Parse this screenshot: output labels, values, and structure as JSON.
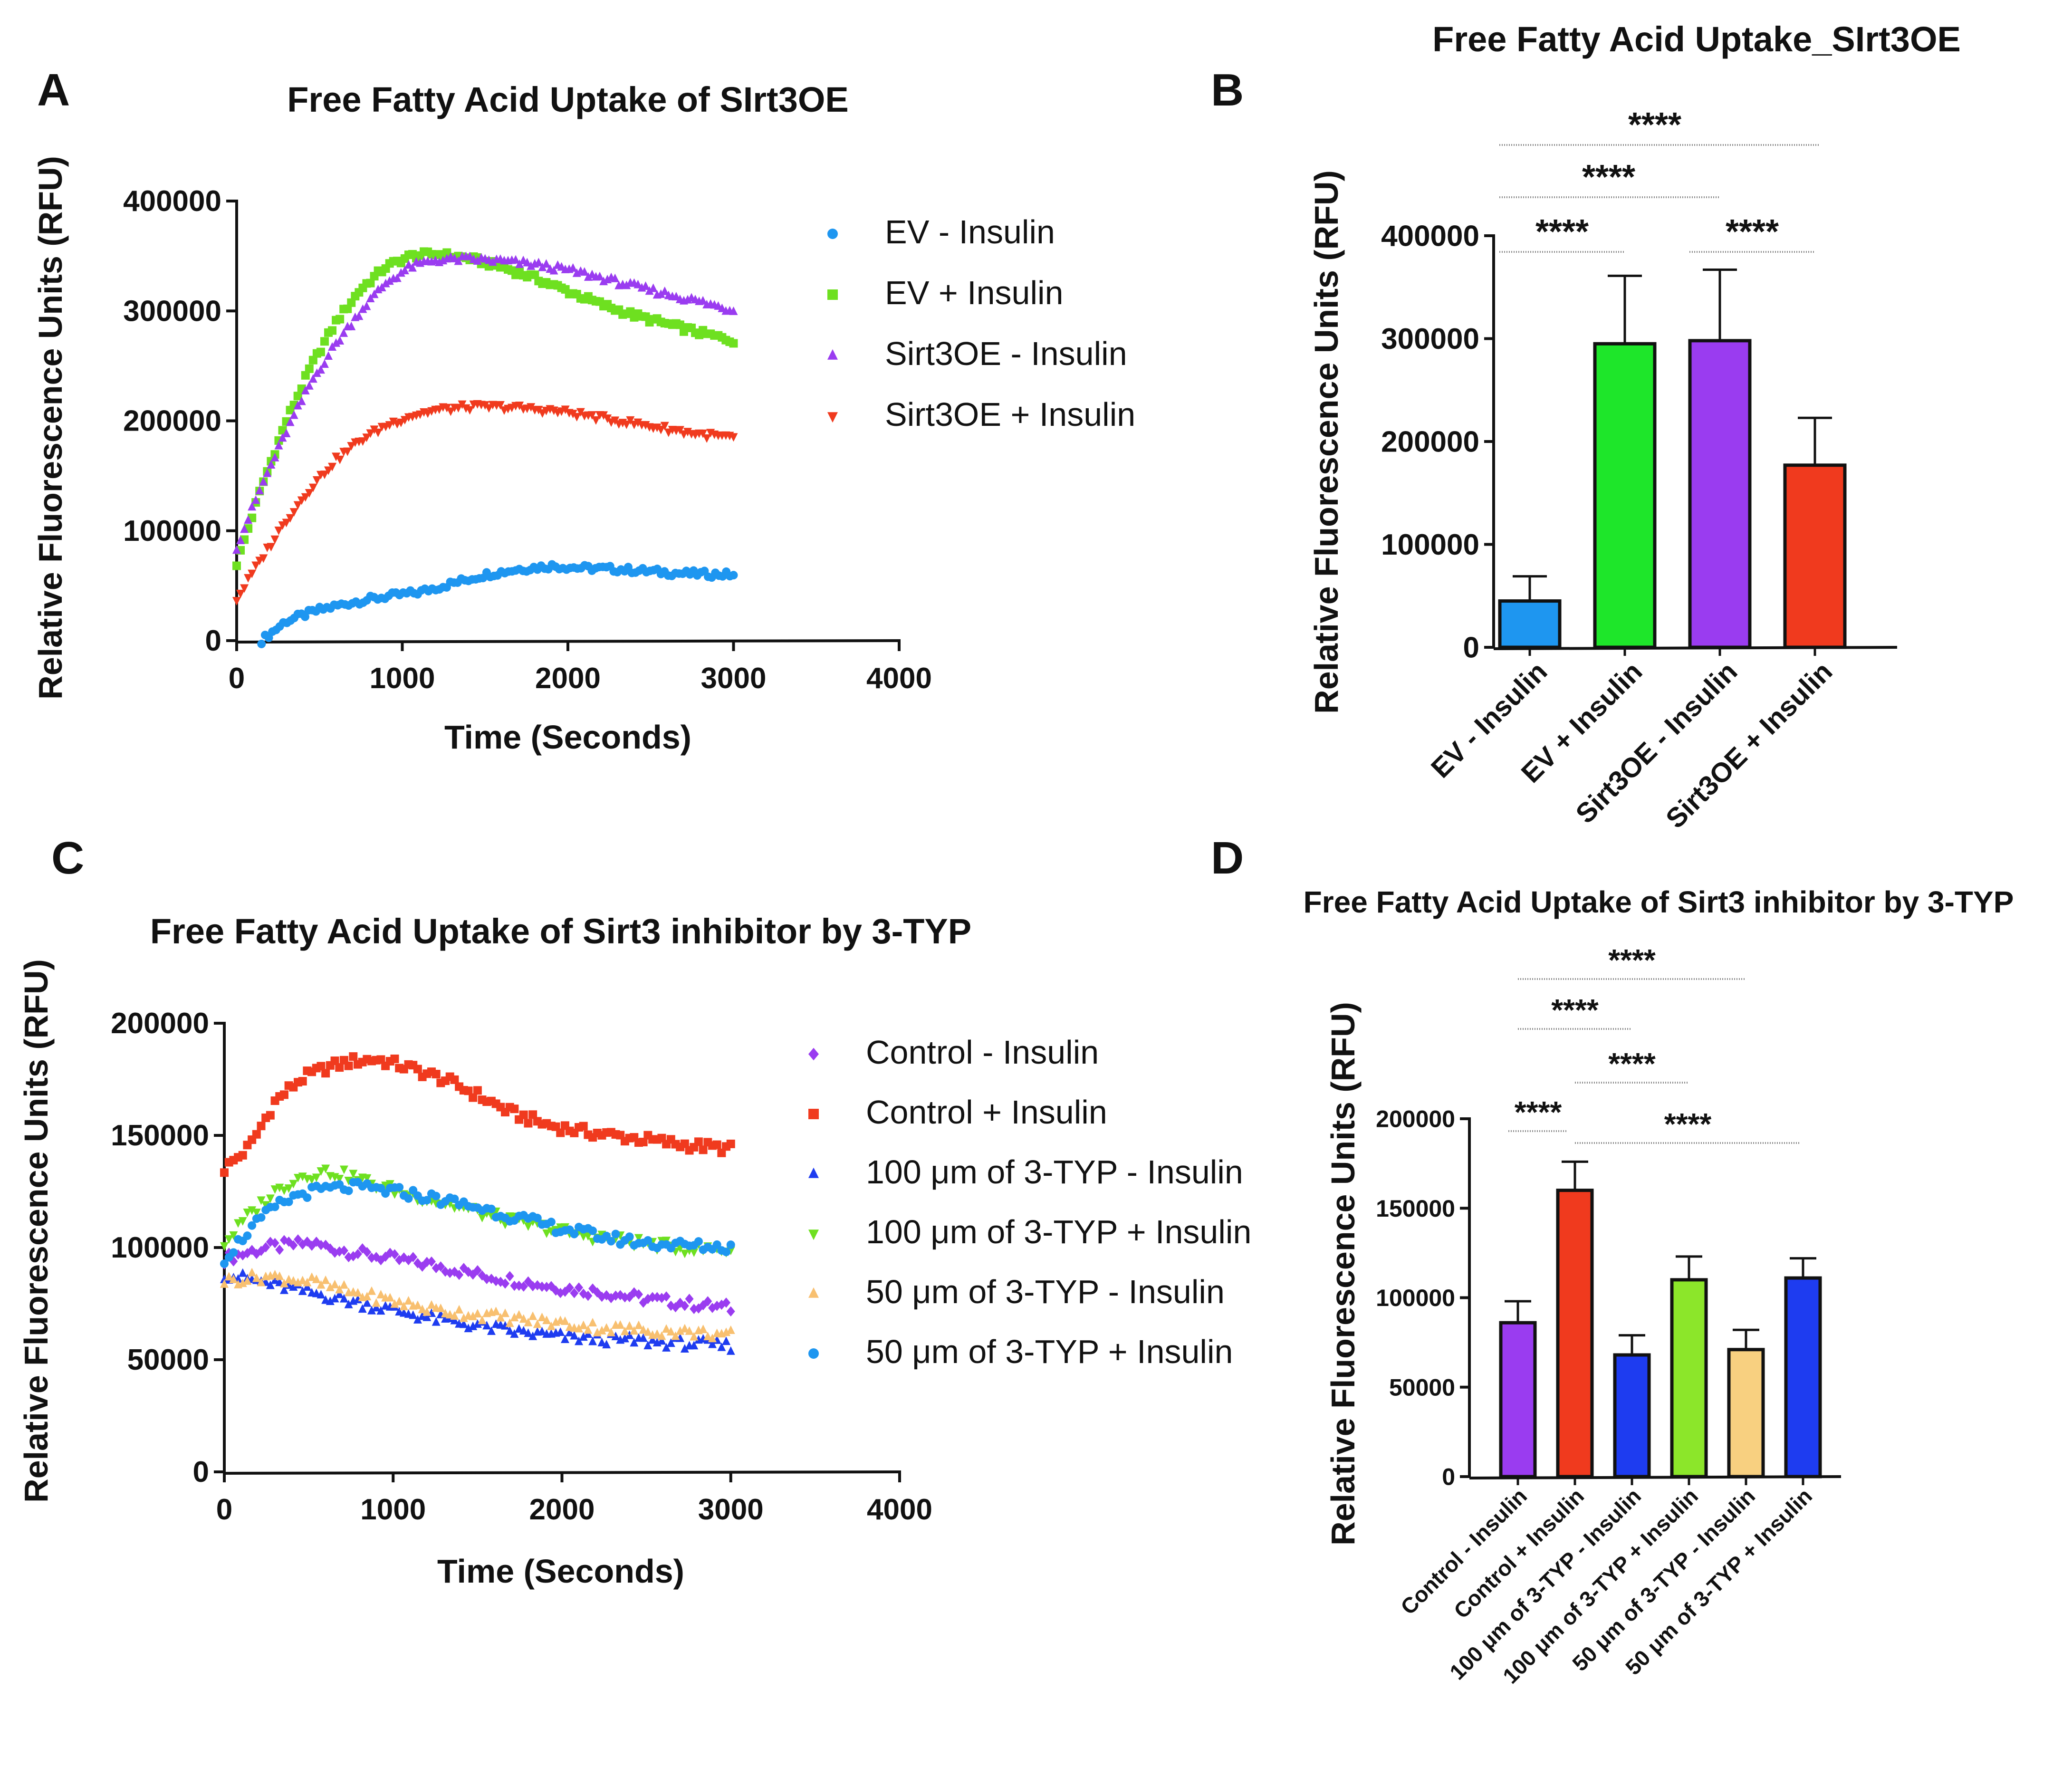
{
  "panels": {
    "A": "A",
    "B": "B",
    "C": "C",
    "D": "D"
  },
  "chart_data": [
    {
      "id": "A",
      "type": "scatter",
      "title": "Free Fatty Acid Uptake of SIrt3OE",
      "xlabel": "Time (Seconds)",
      "ylabel": "Relative Fluorescence Units (RFU)",
      "xlim": [
        0,
        4000
      ],
      "ylim": [
        0,
        400000
      ],
      "xticks": [
        0,
        1000,
        2000,
        3000,
        4000
      ],
      "yticks": [
        0,
        100000,
        200000,
        300000,
        400000
      ],
      "series": [
        {
          "name": "EV - Insulin",
          "color": "#1e96f0",
          "marker": "circle",
          "x": [
            150,
            300,
            500,
            700,
            900,
            1100,
            1300,
            1500,
            1700,
            1900,
            2100,
            2300,
            2500,
            2700,
            3000
          ],
          "y": [
            0,
            18000,
            28000,
            35000,
            40000,
            44000,
            52000,
            60000,
            65000,
            68000,
            66000,
            65000,
            63000,
            61000,
            60000
          ]
        },
        {
          "name": "EV + Insulin",
          "color": "#6ee020",
          "marker": "square",
          "x": [
            0,
            150,
            300,
            450,
            600,
            750,
            900,
            1050,
            1200,
            1400,
            1600,
            1800,
            2000,
            2200,
            2400,
            2600,
            2800,
            3000
          ],
          "y": [
            70000,
            140000,
            200000,
            250000,
            290000,
            320000,
            340000,
            350000,
            352000,
            348000,
            340000,
            330000,
            318000,
            306000,
            296000,
            288000,
            280000,
            273000
          ]
        },
        {
          "name": "Sirt3OE - Insulin",
          "color": "#9a3cf0",
          "marker": "triangle-up",
          "x": [
            0,
            150,
            300,
            450,
            600,
            750,
            900,
            1050,
            1200,
            1400,
            1600,
            1800,
            2000,
            2200,
            2400,
            2600,
            2800,
            3000
          ],
          "y": [
            85000,
            140000,
            190000,
            235000,
            270000,
            300000,
            325000,
            340000,
            346000,
            347000,
            345000,
            342000,
            337000,
            330000,
            322000,
            315000,
            308000,
            300000
          ]
        },
        {
          "name": "Sirt3OE + Insulin",
          "color": "#f03a1e",
          "marker": "triangle-down",
          "x": [
            0,
            150,
            300,
            450,
            600,
            750,
            900,
            1050,
            1200,
            1400,
            1600,
            1800,
            2000,
            2200,
            2400,
            2600,
            2800,
            3000
          ],
          "y": [
            38000,
            75000,
            110000,
            140000,
            165000,
            183000,
            196000,
            205000,
            210000,
            213000,
            213000,
            211000,
            208000,
            203000,
            198000,
            193000,
            188000,
            185000
          ]
        }
      ]
    },
    {
      "id": "B",
      "type": "bar",
      "title": "Free Fatty Acid Uptake_SIrt3OE",
      "ylabel": "Relative Fluorescence Units (RFU)",
      "ylim": [
        0,
        400000
      ],
      "yticks": [
        0,
        100000,
        200000,
        300000,
        400000
      ],
      "categories": [
        "EV - Insulin",
        "EV + Insulin",
        "Sirt3OE - Insulin",
        "Sirt3OE + Insulin"
      ],
      "values": [
        45000,
        295000,
        298000,
        177000
      ],
      "errors": [
        24000,
        66000,
        69000,
        46000
      ],
      "colors": [
        "#1e96f0",
        "#1ee62a",
        "#9a3cf0",
        "#f03a1e"
      ],
      "significance": [
        {
          "from": 0,
          "to": 1,
          "label": "****"
        },
        {
          "from": 2,
          "to": 3,
          "label": "****"
        },
        {
          "from": 0,
          "to": 2,
          "label": "****"
        },
        {
          "from": 0,
          "to": 3,
          "label": "****"
        }
      ]
    },
    {
      "id": "C",
      "type": "scatter",
      "title": "Free Fatty Acid Uptake of Sirt3 inhibitor by 3-TYP",
      "xlabel": "Time (Seconds)",
      "ylabel": "Relative Fluorescence Units (RFU)",
      "xlim": [
        0,
        4000
      ],
      "ylim": [
        0,
        200000
      ],
      "xticks": [
        0,
        1000,
        2000,
        3000,
        4000
      ],
      "yticks": [
        0,
        50000,
        100000,
        150000,
        200000
      ],
      "series": [
        {
          "name": "Control - Insulin",
          "color": "#9a3cf0",
          "marker": "diamond",
          "x": [
            0,
            250,
            500,
            750,
            1000,
            1250,
            1500,
            1750,
            2000,
            2250,
            2500,
            2750,
            3000
          ],
          "y": [
            95000,
            100000,
            102000,
            98000,
            95000,
            92000,
            88000,
            85000,
            82000,
            80000,
            77000,
            75000,
            73000
          ]
        },
        {
          "name": " Control + Insulin",
          "color": "#f03a1e",
          "marker": "square",
          "x": [
            0,
            150,
            300,
            450,
            600,
            750,
            900,
            1100,
            1300,
            1500,
            1700,
            1900,
            2100,
            2300,
            2500,
            2700,
            3000
          ],
          "y": [
            135000,
            145000,
            165000,
            175000,
            180000,
            183000,
            184000,
            180000,
            175000,
            168000,
            160000,
            155000,
            152000,
            150000,
            148000,
            146000,
            144000
          ]
        },
        {
          "name": "100 μm of 3-TYP - Insulin",
          "color": "#1e3cf0",
          "marker": "triangle-up",
          "x": [
            0,
            250,
            500,
            750,
            1000,
            1250,
            1500,
            1750,
            2000,
            2250,
            2500,
            2750,
            3000
          ],
          "y": [
            88000,
            84000,
            80000,
            76000,
            72000,
            68000,
            65000,
            62000,
            60000,
            59000,
            58000,
            57000,
            56000
          ]
        },
        {
          "name": "100 μm of 3-TYP + Insulin",
          "color": "#6ee020",
          "marker": "triangle-down",
          "x": [
            0,
            150,
            300,
            450,
            600,
            750,
            900,
            1100,
            1300,
            1500,
            1700,
            1900,
            2100,
            2300,
            2500,
            2700,
            3000
          ],
          "y": [
            102000,
            115000,
            125000,
            132000,
            134000,
            132000,
            128000,
            124000,
            120000,
            116000,
            112000,
            109000,
            106000,
            104000,
            102000,
            100000,
            99000
          ]
        },
        {
          "name": "50 μm of 3-TYP - Insulin",
          "color": "#f8c070",
          "marker": "triangle-up",
          "x": [
            0,
            250,
            500,
            750,
            1000,
            1250,
            1500,
            1750,
            2000,
            2250,
            2500,
            2750,
            3000
          ],
          "y": [
            85000,
            87000,
            85000,
            80000,
            76000,
            72000,
            70000,
            68000,
            66000,
            64000,
            63000,
            62000,
            61000
          ]
        },
        {
          "name": "50 μm of 3-TYP + Insulin",
          "color": "#1e96f0",
          "marker": "circle",
          "x": [
            0,
            150,
            300,
            450,
            600,
            750,
            900,
            1100,
            1300,
            1500,
            1700,
            1900,
            2100,
            2300,
            2500,
            2700,
            3000
          ],
          "y": [
            95000,
            108000,
            118000,
            124000,
            126000,
            127000,
            126000,
            124000,
            121000,
            118000,
            114000,
            110000,
            107000,
            104000,
            102000,
            101000,
            100000
          ]
        }
      ]
    },
    {
      "id": "D",
      "type": "bar",
      "title": "Free Fatty Acid Uptake of Sirt3 inhibitor by 3-TYP",
      "ylabel": "Relative Fluorescence Units (RFU)",
      "ylim": [
        0,
        200000
      ],
      "yticks": [
        0,
        50000,
        100000,
        150000,
        200000
      ],
      "categories": [
        "Control - Insulin",
        "Control + Insulin",
        "100 μm of 3-TYP - Insulin",
        "100 μm of 3-TYP + Insulin",
        "50 μm of 3-TYP - Insulin",
        "50 μm of 3-TYP + Insulin"
      ],
      "values": [
        86000,
        160000,
        68000,
        110000,
        71000,
        111000
      ],
      "errors": [
        12000,
        16000,
        11000,
        13000,
        11000,
        11000
      ],
      "colors": [
        "#9a3cf0",
        "#f03a1e",
        "#1e3cf0",
        "#8ce62a",
        "#f8d080",
        "#1e3cf0"
      ],
      "significance": [
        {
          "from": 0,
          "to": 1,
          "label": "****"
        },
        {
          "from": 1,
          "to": 5,
          "label": "****"
        },
        {
          "from": 1,
          "to": 3,
          "label": "****"
        },
        {
          "from": 0,
          "to": 2,
          "label": "****"
        },
        {
          "from": 0,
          "to": 4,
          "label": "****"
        }
      ]
    }
  ]
}
